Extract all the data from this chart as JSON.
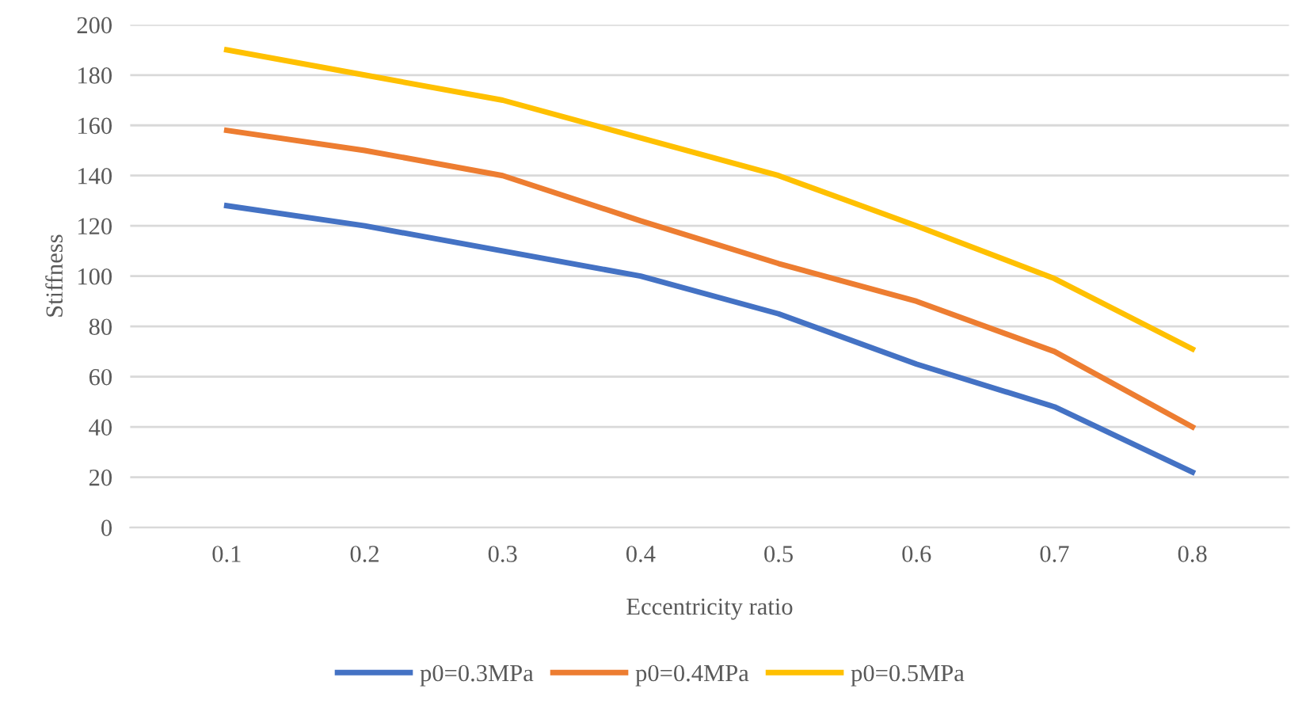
{
  "chart_data": {
    "type": "line",
    "xlabel": "Eccentricity ratio",
    "ylabel": "Stiffness",
    "categories": [
      "0.1",
      "0.2",
      "0.3",
      "0.4",
      "0.5",
      "0.6",
      "0.7",
      "0.8"
    ],
    "series": [
      {
        "name": "p0=0.3MPa",
        "color": "#4472c4",
        "values": [
          128,
          120,
          110,
          100,
          85,
          65,
          48,
          22
        ]
      },
      {
        "name": "p0=0.4MPa",
        "color": "#ed7d31",
        "values": [
          158,
          150,
          140,
          122,
          105,
          90,
          70,
          40
        ]
      },
      {
        "name": "p0=0.5MPa",
        "color": "#ffc000",
        "values": [
          190,
          180,
          170,
          155,
          140,
          120,
          99,
          71
        ]
      }
    ],
    "ylim": [
      0,
      200
    ],
    "yticks": [
      0,
      20,
      40,
      60,
      80,
      100,
      120,
      140,
      160,
      180,
      200
    ],
    "grid": "y",
    "legend": "bottom",
    "marker": "none",
    "line_style": "solid"
  }
}
